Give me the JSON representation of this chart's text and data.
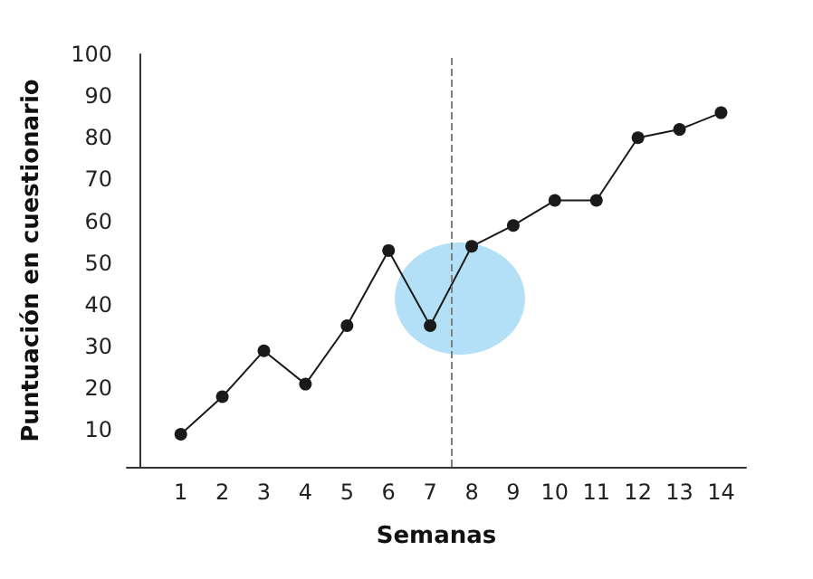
{
  "chart_data": {
    "type": "line",
    "xlabel": "Semanas",
    "ylabel": "Puntuación en cuestionario",
    "x": [
      1,
      2,
      3,
      4,
      5,
      6,
      7,
      8,
      9,
      10,
      11,
      12,
      13,
      14
    ],
    "series": [
      {
        "color": "#1a1a1a",
        "values": [
          9,
          18,
          29,
          21,
          35,
          53,
          35,
          54,
          59,
          65,
          65,
          80,
          82,
          86
        ]
      }
    ],
    "xlim": [
      -0.3,
      14.6
    ],
    "xticks": [
      1,
      2,
      3,
      4,
      5,
      6,
      7,
      8,
      9,
      10,
      11,
      12,
      13,
      14
    ],
    "ylim": [
      1.2,
      100
    ],
    "yticks": [
      10,
      20,
      30,
      40,
      50,
      60,
      70,
      80,
      90,
      100
    ],
    "ref_lines": [
      {
        "axis": "x",
        "value": 7.5,
        "color": "#808080",
        "line_style": "dashed"
      }
    ],
    "grid": false,
    "marker": "circle",
    "line_style": "solid"
  }
}
